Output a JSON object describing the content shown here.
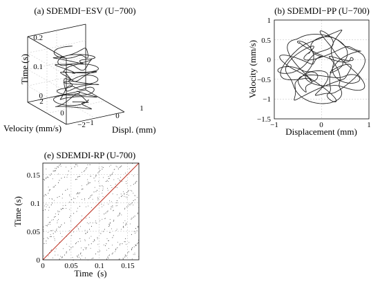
{
  "chart_data": [
    {
      "type": "line",
      "title": "(a) SDEMDI−ESV (U−700)",
      "view": "3d",
      "xlabel": "Displ. (mm)",
      "ylabel": "Velocity (mm/s)",
      "zlabel": "Time (s)",
      "xticks": [
        "−1",
        "0",
        "1"
      ],
      "yticks": [
        "−2",
        "0",
        "2"
      ],
      "zticks": [
        "0",
        "0.1",
        "0.2"
      ],
      "xlim": [
        -1,
        1
      ],
      "ylim": [
        -2,
        2
      ],
      "zlim": [
        0,
        0.2
      ],
      "z_max_data": 0.17,
      "grid": true
    },
    {
      "type": "line",
      "title": "(b) SDEMDI−PP (U−700)",
      "xlabel": "Displacement (mm)",
      "ylabel": "Velocity (mm/s)",
      "xticks": [
        "−1",
        "0",
        "1"
      ],
      "yticks": [
        "−1.5",
        "−1",
        "−0.5",
        "0",
        "0.5",
        "1"
      ],
      "xlim": [
        -1,
        1
      ],
      "ylim": [
        -1.5,
        1
      ],
      "grid": true
    },
    {
      "type": "scatter",
      "title": "(e) SDEMDI-RP (U-700)",
      "xlabel": "Time  (s)",
      "ylabel": "Time (s)",
      "xticks": [
        "0",
        "0.05",
        "0.1",
        "0.15"
      ],
      "yticks": [
        "0",
        "0.05",
        "0.1",
        "0.15"
      ],
      "xlim": [
        0,
        0.17
      ],
      "ylim": [
        0,
        0.17
      ],
      "diagonal_color": "#c0392b",
      "grid": true
    }
  ]
}
